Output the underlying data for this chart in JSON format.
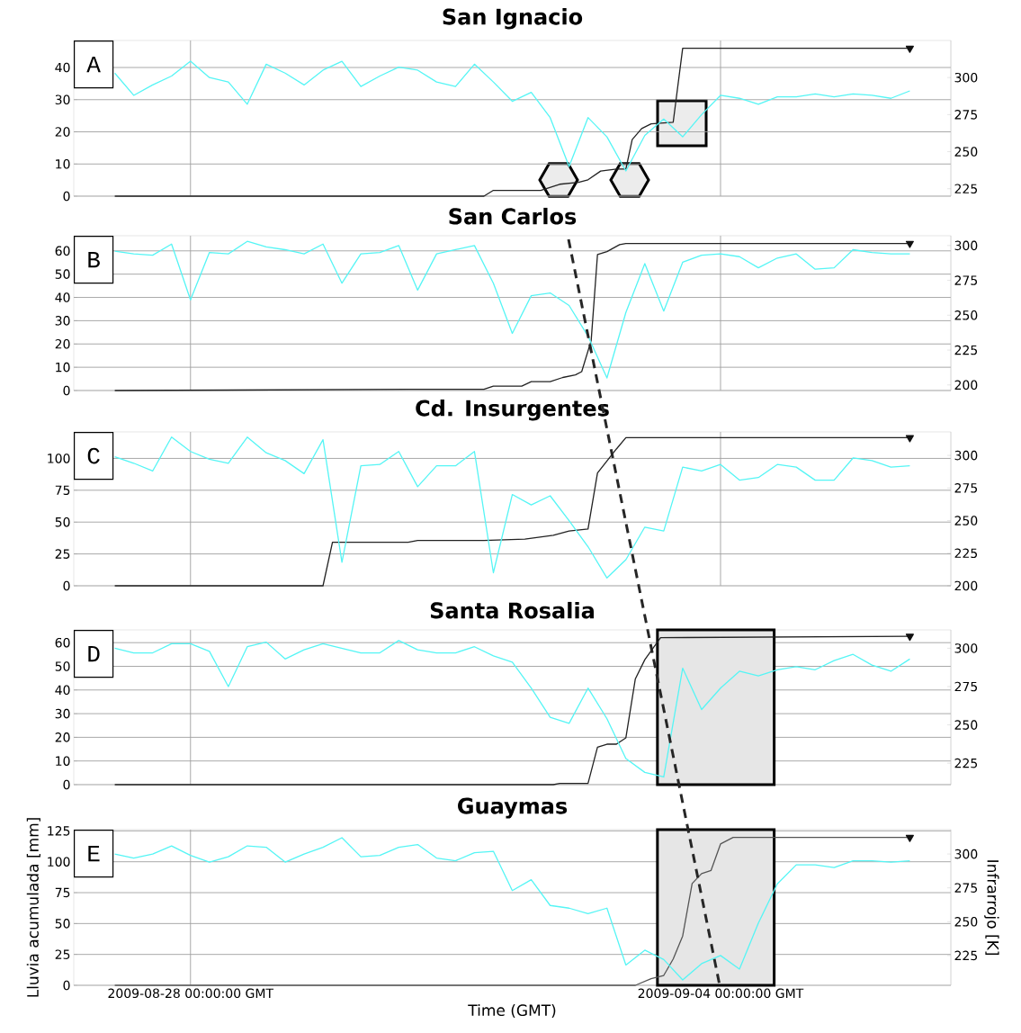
{
  "chart_data": [
    {
      "type": "line",
      "title": "San Ignacio",
      "annotations": [
        "A"
      ],
      "grid": true,
      "tick_labels": "y",
      "xlim": [
        "2009-08-26T11:00",
        "2009-09-07T01:00"
      ],
      "xticks": [
        {
          "value": "2009-08-28T00:00",
          "label": null
        },
        {
          "value": "2009-09-04T00:00",
          "label": null
        }
      ],
      "ylim": [
        0,
        48.4
      ],
      "yticks": [
        0,
        10,
        20,
        30,
        40
      ],
      "y2lim": [
        220,
        325
      ],
      "y2ticks": [
        225,
        250,
        275,
        300
      ],
      "x": [
        "2009-08-27T00:00",
        "2009-08-27T06:00",
        "2009-08-27T12:00",
        "2009-08-27T18:00",
        "2009-08-28T00:00",
        "2009-08-28T06:00",
        "2009-08-28T12:00",
        "2009-08-28T18:00",
        "2009-08-29T00:00",
        "2009-08-29T06:00",
        "2009-08-29T12:00",
        "2009-08-29T18:00",
        "2009-08-30T00:00",
        "2009-08-30T06:00",
        "2009-08-30T12:00",
        "2009-08-30T18:00",
        "2009-08-31T00:00",
        "2009-08-31T06:00",
        "2009-08-31T12:00",
        "2009-08-31T18:00",
        "2009-09-01T00:00",
        "2009-09-01T06:00",
        "2009-09-01T12:00",
        "2009-09-01T18:00",
        "2009-09-02T00:00",
        "2009-09-02T06:00",
        "2009-09-02T12:00",
        "2009-09-02T18:00",
        "2009-09-03T00:00",
        "2009-09-03T06:00",
        "2009-09-03T12:00",
        "2009-09-03T18:00",
        "2009-09-04T00:00",
        "2009-09-04T06:00",
        "2009-09-04T12:00",
        "2009-09-04T18:00",
        "2009-09-05T00:00",
        "2009-09-05T06:00",
        "2009-09-05T12:00",
        "2009-09-05T18:00",
        "2009-09-06T00:00",
        "2009-09-06T06:00",
        "2009-09-06T12:00"
      ],
      "series": [
        {
          "type": "line",
          "axis": "y2",
          "color": "#55f5f5",
          "values": [
            303,
            288,
            295,
            301,
            311,
            300,
            297,
            282,
            309,
            303,
            295,
            305,
            311,
            294,
            301,
            307,
            305,
            297,
            294,
            309,
            297,
            284,
            290,
            273,
            240,
            273,
            260,
            237,
            261,
            272,
            260,
            275,
            288,
            286,
            282,
            287,
            287,
            289,
            287,
            289,
            288,
            286,
            291
          ]
        },
        {
          "type": "line",
          "color": "#222222",
          "x": [
            "2009-08-27T00:00",
            "2009-08-31T21:00",
            "2009-09-01T00:00",
            "2009-09-01T15:00",
            "2009-09-01T21:00",
            "2009-09-02T03:00",
            "2009-09-02T06:00",
            "2009-09-02T10:00",
            "2009-09-02T15:00",
            "2009-09-02T18:00",
            "2009-09-02T20:00",
            "2009-09-02T23:00",
            "2009-09-03T02:00",
            "2009-09-03T09:00",
            "2009-09-03T12:00",
            "2009-09-06T12:00"
          ],
          "values": [
            0,
            0,
            1.8,
            1.8,
            3.7,
            4.3,
            5.1,
            7.8,
            8.4,
            8.4,
            17.6,
            21,
            22.5,
            23,
            46,
            46
          ]
        },
        {
          "type": "scatter",
          "marker": "triangle",
          "color": "#111111",
          "x": [
            "2009-09-06T12:00"
          ],
          "values": [
            46
          ]
        }
      ]
    },
    {
      "type": "line",
      "title": "San Carlos",
      "annotations": [
        "B"
      ],
      "grid": true,
      "tick_labels": "y",
      "xlim": [
        "2009-08-26T11:00",
        "2009-09-07T01:00"
      ],
      "xticks": [
        {
          "value": "2009-08-28T00:00",
          "label": null
        },
        {
          "value": "2009-09-04T00:00",
          "label": null
        }
      ],
      "ylim": [
        0,
        66.5
      ],
      "yticks": [
        0,
        10,
        20,
        30,
        40,
        50,
        60
      ],
      "y2lim": [
        196,
        307
      ],
      "y2ticks": [
        200,
        225,
        250,
        275,
        300
      ],
      "x": [
        "2009-08-27T00:00",
        "2009-08-27T06:00",
        "2009-08-27T12:00",
        "2009-08-27T18:00",
        "2009-08-28T00:00",
        "2009-08-28T06:00",
        "2009-08-28T12:00",
        "2009-08-28T18:00",
        "2009-08-29T00:00",
        "2009-08-29T06:00",
        "2009-08-29T12:00",
        "2009-08-29T18:00",
        "2009-08-30T00:00",
        "2009-08-30T06:00",
        "2009-08-30T12:00",
        "2009-08-30T18:00",
        "2009-08-31T00:00",
        "2009-08-31T06:00",
        "2009-08-31T12:00",
        "2009-08-31T18:00",
        "2009-09-01T00:00",
        "2009-09-01T06:00",
        "2009-09-01T12:00",
        "2009-09-01T18:00",
        "2009-09-02T00:00",
        "2009-09-02T06:00",
        "2009-09-02T12:00",
        "2009-09-02T18:00",
        "2009-09-03T00:00",
        "2009-09-03T06:00",
        "2009-09-03T12:00",
        "2009-09-03T18:00",
        "2009-09-04T00:00",
        "2009-09-04T06:00",
        "2009-09-04T12:00",
        "2009-09-04T18:00",
        "2009-09-05T00:00",
        "2009-09-05T06:00",
        "2009-09-05T12:00",
        "2009-09-05T18:00",
        "2009-09-06T00:00",
        "2009-09-06T06:00",
        "2009-09-06T12:00"
      ],
      "series": [
        {
          "type": "line",
          "axis": "y2",
          "color": "#55f5f5",
          "values": [
            296,
            294,
            293,
            301,
            261,
            295,
            294,
            303,
            299,
            297,
            294,
            301,
            273,
            294,
            295,
            300,
            268,
            294,
            297,
            300,
            273,
            237,
            264,
            266,
            257,
            235,
            205,
            252,
            287,
            253,
            288,
            293,
            294,
            292,
            284,
            291,
            294,
            283,
            284,
            297,
            295,
            294,
            294
          ]
        },
        {
          "type": "line",
          "color": "#222222",
          "x": [
            "2009-08-27T00:00",
            "2009-08-30T21:00",
            "2009-08-31T21:00",
            "2009-09-01T00:00",
            "2009-09-01T09:00",
            "2009-09-01T12:00",
            "2009-09-01T18:00",
            "2009-09-01T22:00",
            "2009-09-02T02:00",
            "2009-09-02T04:00",
            "2009-09-02T07:00",
            "2009-09-02T09:00",
            "2009-09-02T12:00",
            "2009-09-02T16:00",
            "2009-09-02T18:00",
            "2009-09-06T12:00"
          ],
          "values": [
            0,
            0.5,
            0.5,
            1.9,
            1.9,
            3.8,
            3.8,
            5.6,
            6.7,
            8.1,
            21.5,
            58.4,
            59.7,
            62.7,
            63.2,
            63.2
          ]
        },
        {
          "type": "scatter",
          "marker": "triangle",
          "color": "#111111",
          "x": [
            "2009-09-06T12:00"
          ],
          "values": [
            63.2
          ]
        }
      ]
    },
    {
      "type": "line",
      "title": "Cd. Insurgentes",
      "annotations": [
        "C"
      ],
      "grid": true,
      "tick_labels": "y",
      "xlim": [
        "2009-08-26T11:00",
        "2009-09-07T01:00"
      ],
      "xticks": [
        {
          "value": "2009-08-28T00:00",
          "label": null
        },
        {
          "value": "2009-09-04T00:00",
          "label": null
        }
      ],
      "ylim": [
        0,
        120.8
      ],
      "yticks": [
        0,
        25,
        50,
        75,
        100
      ],
      "y2lim": [
        200,
        318
      ],
      "y2ticks": [
        200,
        225,
        250,
        275,
        300
      ],
      "x": [
        "2009-08-27T00:00",
        "2009-08-27T06:00",
        "2009-08-27T12:00",
        "2009-08-27T18:00",
        "2009-08-28T00:00",
        "2009-08-28T06:00",
        "2009-08-28T12:00",
        "2009-08-28T18:00",
        "2009-08-29T00:00",
        "2009-08-29T06:00",
        "2009-08-29T12:00",
        "2009-08-29T18:00",
        "2009-08-30T00:00",
        "2009-08-30T06:00",
        "2009-08-30T12:00",
        "2009-08-30T18:00",
        "2009-08-31T00:00",
        "2009-08-31T06:00",
        "2009-08-31T12:00",
        "2009-08-31T18:00",
        "2009-09-01T00:00",
        "2009-09-01T06:00",
        "2009-09-01T12:00",
        "2009-09-01T18:00",
        "2009-09-02T00:00",
        "2009-09-02T06:00",
        "2009-09-02T12:00",
        "2009-09-02T18:00",
        "2009-09-03T00:00",
        "2009-09-03T06:00",
        "2009-09-03T12:00",
        "2009-09-03T18:00",
        "2009-09-04T00:00",
        "2009-09-04T06:00",
        "2009-09-04T12:00",
        "2009-09-04T18:00",
        "2009-09-05T00:00",
        "2009-09-05T06:00",
        "2009-09-05T12:00",
        "2009-09-05T18:00",
        "2009-09-06T00:00",
        "2009-09-06T06:00",
        "2009-09-06T12:00"
      ],
      "series": [
        {
          "type": "line",
          "axis": "y2",
          "color": "#55f5f5",
          "values": [
            299,
            294,
            288,
            314,
            303,
            297,
            294,
            314,
            302,
            296,
            286,
            312,
            218,
            292,
            293,
            303,
            276,
            292,
            292,
            303,
            210,
            270,
            262,
            269,
            250,
            230,
            206,
            220,
            245,
            242,
            291,
            288,
            293,
            281,
            283,
            293,
            291,
            281,
            281,
            298,
            296,
            291,
            292
          ]
        },
        {
          "type": "line",
          "color": "#222222",
          "x": [
            "2009-08-27T00:00",
            "2009-08-29T18:00",
            "2009-08-29T21:00",
            "2009-08-30T21:00",
            "2009-08-31T00:00",
            "2009-08-31T21:00",
            "2009-09-01T10:00",
            "2009-09-01T19:00",
            "2009-09-02T00:00",
            "2009-09-02T06:00",
            "2009-09-02T09:00",
            "2009-09-02T15:00",
            "2009-09-02T18:00",
            "2009-09-06T12:00"
          ],
          "values": [
            0,
            0,
            34.2,
            34.2,
            35.6,
            35.6,
            36.6,
            39.6,
            43,
            44.6,
            88.6,
            107.4,
            116.3,
            116.3
          ]
        },
        {
          "type": "scatter",
          "marker": "triangle",
          "color": "#111111",
          "x": [
            "2009-09-06T12:00"
          ],
          "values": [
            116.3
          ]
        }
      ]
    },
    {
      "type": "line",
      "title": "Santa Rosalia",
      "annotations": [
        "D"
      ],
      "grid": true,
      "tick_labels": "y",
      "xlim": [
        "2009-08-26T11:00",
        "2009-09-07T01:00"
      ],
      "xticks": [
        {
          "value": "2009-08-28T00:00",
          "label": null
        },
        {
          "value": "2009-09-04T00:00",
          "label": null
        }
      ],
      "ylim": [
        0,
        65.4
      ],
      "yticks": [
        0,
        10,
        20,
        30,
        40,
        50,
        60
      ],
      "y2lim": [
        211,
        312
      ],
      "y2ticks": [
        225,
        250,
        275,
        300
      ],
      "bands": [
        {
          "axis": "x",
          "from": "2009-09-03T04:00",
          "to": "2009-09-04T17:00",
          "color": "#e6e6e6"
        }
      ],
      "x": [
        "2009-08-27T00:00",
        "2009-08-27T06:00",
        "2009-08-27T12:00",
        "2009-08-27T18:00",
        "2009-08-28T00:00",
        "2009-08-28T06:00",
        "2009-08-28T12:00",
        "2009-08-28T18:00",
        "2009-08-29T00:00",
        "2009-08-29T06:00",
        "2009-08-29T12:00",
        "2009-08-29T18:00",
        "2009-08-30T00:00",
        "2009-08-30T06:00",
        "2009-08-30T12:00",
        "2009-08-30T18:00",
        "2009-08-31T00:00",
        "2009-08-31T06:00",
        "2009-08-31T12:00",
        "2009-08-31T18:00",
        "2009-09-01T00:00",
        "2009-09-01T06:00",
        "2009-09-01T12:00",
        "2009-09-01T18:00",
        "2009-09-02T00:00",
        "2009-09-02T06:00",
        "2009-09-02T12:00",
        "2009-09-02T18:00",
        "2009-09-03T00:00",
        "2009-09-03T06:00",
        "2009-09-03T12:00",
        "2009-09-03T18:00",
        "2009-09-04T00:00",
        "2009-09-04T06:00",
        "2009-09-04T12:00",
        "2009-09-04T18:00",
        "2009-09-05T00:00",
        "2009-09-05T06:00",
        "2009-09-05T12:00",
        "2009-09-05T18:00",
        "2009-09-06T00:00",
        "2009-09-06T06:00",
        "2009-09-06T12:00"
      ],
      "series": [
        {
          "type": "line",
          "axis": "y2",
          "color": "#55f5f5",
          "values": [
            300,
            297,
            297,
            303,
            303,
            298,
            275,
            301,
            304,
            293,
            299,
            303,
            300,
            297,
            297,
            305,
            299,
            297,
            297,
            301,
            295,
            291,
            274,
            255,
            251,
            274,
            254,
            228,
            219,
            216,
            287,
            260,
            274,
            285,
            282,
            286,
            288,
            286,
            292,
            296,
            289,
            285,
            293
          ]
        },
        {
          "type": "line",
          "color": "#222222",
          "x": [
            "2009-08-27T00:00",
            "2009-09-01T19:00",
            "2009-09-01T21:00",
            "2009-09-02T06:00",
            "2009-09-02T09:00",
            "2009-09-02T12:00",
            "2009-09-02T15:00",
            "2009-09-02T18:00",
            "2009-09-02T21:00",
            "2009-09-03T00:00",
            "2009-09-03T05:00",
            "2009-09-06T12:00"
          ],
          "values": [
            0,
            0,
            0.5,
            0.5,
            15.8,
            17.1,
            17.1,
            19.8,
            44.7,
            52.8,
            62.1,
            62.7
          ]
        },
        {
          "type": "scatter",
          "marker": "triangle",
          "color": "#111111",
          "x": [
            "2009-09-06T12:00"
          ],
          "values": [
            62.7
          ]
        }
      ]
    },
    {
      "type": "line",
      "title": "Guaymas",
      "annotations": [
        "E"
      ],
      "grid": true,
      "xlabel": "Time (GMT)",
      "ylabel": "Lluvia acumulada [mm]",
      "y2label": "Infrarrojo [K]",
      "xlim": [
        "2009-08-26T11:00",
        "2009-09-07T01:00"
      ],
      "xticks": [
        {
          "value": "2009-08-28T00:00",
          "label": "2009-08-28 00:00:00 GMT"
        },
        {
          "value": "2009-09-04T00:00",
          "label": "2009-09-04 00:00:00 GMT"
        }
      ],
      "ylim": [
        0,
        126
      ],
      "yticks": [
        0,
        25,
        50,
        75,
        100,
        125
      ],
      "y2lim": [
        203,
        318
      ],
      "y2ticks": [
        225,
        250,
        275,
        300
      ],
      "bands": [
        {
          "axis": "x",
          "from": "2009-09-03T04:00",
          "to": "2009-09-04T17:00",
          "color": "#e6e6e6"
        }
      ],
      "x": [
        "2009-08-27T00:00",
        "2009-08-27T06:00",
        "2009-08-27T12:00",
        "2009-08-27T18:00",
        "2009-08-28T00:00",
        "2009-08-28T06:00",
        "2009-08-28T12:00",
        "2009-08-28T18:00",
        "2009-08-29T00:00",
        "2009-08-29T06:00",
        "2009-08-29T12:00",
        "2009-08-29T18:00",
        "2009-08-30T00:00",
        "2009-08-30T06:00",
        "2009-08-30T12:00",
        "2009-08-30T18:00",
        "2009-08-31T00:00",
        "2009-08-31T06:00",
        "2009-08-31T12:00",
        "2009-08-31T18:00",
        "2009-09-01T00:00",
        "2009-09-01T06:00",
        "2009-09-01T12:00",
        "2009-09-01T18:00",
        "2009-09-02T00:00",
        "2009-09-02T06:00",
        "2009-09-02T12:00",
        "2009-09-02T18:00",
        "2009-09-03T00:00",
        "2009-09-03T06:00",
        "2009-09-03T12:00",
        "2009-09-03T18:00",
        "2009-09-04T00:00",
        "2009-09-04T06:00",
        "2009-09-04T12:00",
        "2009-09-04T18:00",
        "2009-09-05T00:00",
        "2009-09-05T06:00",
        "2009-09-05T12:00",
        "2009-09-05T18:00",
        "2009-09-06T00:00",
        "2009-09-06T06:00",
        "2009-09-06T12:00"
      ],
      "series": [
        {
          "type": "line",
          "axis": "y2",
          "color": "#55f5f5",
          "values": [
            300,
            297,
            300,
            306,
            299,
            294,
            298,
            306,
            305,
            294,
            300,
            305,
            312,
            298,
            299,
            305,
            307,
            297,
            295,
            301,
            302,
            273,
            281,
            262,
            260,
            256,
            260,
            218,
            229,
            222,
            207,
            219,
            225,
            215,
            249,
            278,
            292,
            292,
            290,
            295,
            295,
            294,
            295
          ]
        },
        {
          "type": "line",
          "color": "#555555",
          "x": [
            "2009-08-27T00:00",
            "2009-09-02T21:00",
            "2009-09-03T02:00",
            "2009-09-03T06:00",
            "2009-09-03T09:00",
            "2009-09-03T12:00",
            "2009-09-03T15:00",
            "2009-09-03T18:00",
            "2009-09-03T21:00",
            "2009-09-04T00:00",
            "2009-09-04T04:00",
            "2009-09-06T12:00"
          ],
          "values": [
            0,
            0,
            5.3,
            8,
            21.3,
            39.9,
            82.4,
            90.4,
            93,
            114.4,
            119.7,
            119.7
          ]
        },
        {
          "type": "scatter",
          "marker": "triangle",
          "color": "#111111",
          "x": [
            "2009-09-06T12:00"
          ],
          "values": [
            119.7
          ]
        }
      ]
    }
  ]
}
